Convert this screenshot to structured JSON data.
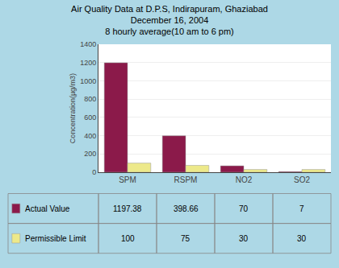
{
  "chart_data": {
    "type": "bar",
    "title": "Air Quality Data at D.P.S, Indirapuram, Ghaziabad\nDecember 16, 2004\n8 hourly average(10 am to 6 pm)",
    "ylabel": "Concentration(µg/m3)",
    "categories": [
      "SPM",
      "RSPM",
      "NO2",
      "SO2"
    ],
    "series": [
      {
        "name": "Actual Value",
        "color": "#8B1A4A",
        "values": [
          1197.38,
          398.66,
          70,
          7
        ]
      },
      {
        "name": "Permissible Limit",
        "color": "#EDE98A",
        "values": [
          100,
          75,
          30,
          30
        ]
      }
    ],
    "ylim": [
      0,
      1400
    ],
    "yticks": [
      0,
      200,
      400,
      600,
      800,
      1000,
      1200,
      1400
    ],
    "grid": true
  }
}
